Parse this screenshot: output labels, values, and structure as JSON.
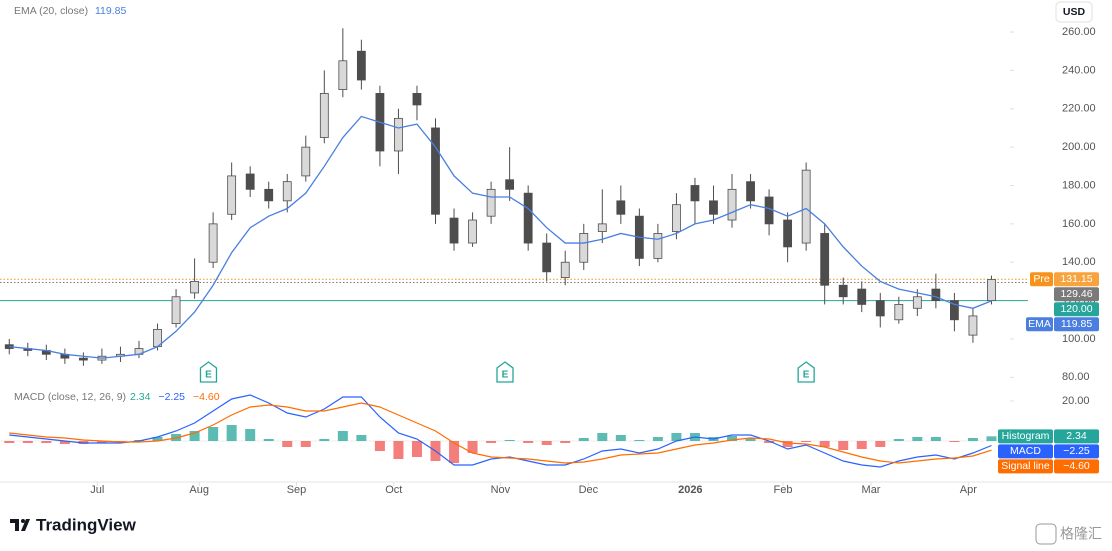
{
  "chart_data": [
    {
      "type": "candlestick",
      "currency": "USD",
      "x": [
        0,
        4,
        8,
        12,
        16,
        20,
        24,
        28,
        32,
        36,
        40,
        44,
        48,
        52,
        56,
        60,
        64,
        68,
        72,
        76,
        80,
        84,
        88,
        92,
        96,
        100,
        104,
        108,
        112,
        116,
        120,
        124,
        128,
        132,
        136,
        140,
        144,
        148,
        152,
        156,
        160,
        164,
        168,
        172,
        176,
        180,
        184,
        188,
        192,
        196,
        200,
        204,
        208,
        212
      ],
      "open": [
        97,
        95,
        94,
        92,
        90,
        89,
        91,
        92,
        96,
        108,
        124,
        140,
        165,
        186,
        178,
        172,
        185,
        205,
        230,
        250,
        228,
        198,
        228,
        210,
        163,
        150,
        164,
        183,
        176,
        150,
        132,
        140,
        156,
        172,
        164,
        142,
        156,
        180,
        172,
        162,
        182,
        174,
        162,
        150,
        155,
        128,
        126,
        120,
        110,
        116,
        126,
        120,
        102,
        120
      ],
      "high": [
        100,
        98,
        97,
        95,
        93,
        95,
        96,
        99,
        108,
        126,
        142,
        166,
        192,
        190,
        182,
        186,
        206,
        240,
        262,
        256,
        232,
        220,
        232,
        215,
        168,
        166,
        182,
        200,
        180,
        155,
        146,
        160,
        178,
        180,
        168,
        160,
        176,
        184,
        180,
        186,
        186,
        178,
        166,
        192,
        160,
        132,
        130,
        124,
        122,
        126,
        134,
        124,
        116,
        133
      ],
      "low": [
        92,
        91,
        89,
        87,
        86,
        87,
        88,
        90,
        94,
        106,
        121,
        137,
        162,
        174,
        168,
        166,
        182,
        202,
        226,
        230,
        190,
        186,
        214,
        160,
        146,
        148,
        160,
        172,
        146,
        130,
        128,
        136,
        150,
        160,
        138,
        140,
        152,
        160,
        160,
        158,
        168,
        154,
        140,
        146,
        118,
        118,
        114,
        106,
        108,
        112,
        116,
        104,
        98,
        118
      ],
      "close": [
        95,
        94,
        92,
        90,
        89,
        91,
        92,
        95,
        105,
        122,
        130,
        160,
        185,
        178,
        172,
        182,
        200,
        228,
        245,
        235,
        198,
        215,
        222,
        165,
        150,
        162,
        178,
        178,
        150,
        135,
        140,
        155,
        160,
        165,
        142,
        155,
        170,
        172,
        165,
        178,
        172,
        160,
        148,
        188,
        128,
        122,
        118,
        112,
        118,
        122,
        120,
        110,
        112,
        131
      ],
      "up_color": "#d9d9d9",
      "down_color": "#4d4d4d",
      "ema": {
        "name": "EMA (20, close)",
        "tag": "EMA",
        "color": "#4a7fe0",
        "values": [
          96,
          95,
          94,
          92,
          91,
          90,
          91,
          92,
          96,
          104,
          114,
          128,
          145,
          158,
          164,
          168,
          176,
          190,
          205,
          216,
          213,
          210,
          212,
          200,
          185,
          176,
          174,
          174,
          168,
          158,
          150,
          150,
          152,
          155,
          153,
          152,
          155,
          160,
          162,
          166,
          170,
          168,
          164,
          168,
          160,
          148,
          138,
          130,
          126,
          124,
          122,
          118,
          116,
          119.85
        ]
      },
      "price_lines": [
        {
          "name": "Pre",
          "value": 131.15,
          "color": "#f7931a",
          "style": "dotted"
        },
        {
          "value": 129.46,
          "color": "#7a7a7a",
          "style": "dotted"
        },
        {
          "value": 120,
          "label": "120.00",
          "color": "#26a69a",
          "style": "solid"
        }
      ],
      "earnings": {
        "label": "E",
        "x": [
          43,
          107,
          172
        ],
        "color": "#26a69a"
      },
      "xlim": [
        -2,
        216
      ],
      "xticks": [
        {
          "value": 19,
          "label": "Jul"
        },
        {
          "value": 41,
          "label": "Aug"
        },
        {
          "value": 62,
          "label": "Sep"
        },
        {
          "value": 83,
          "label": "Oct"
        },
        {
          "value": 106,
          "label": "Nov"
        },
        {
          "value": 125,
          "label": "Dec"
        },
        {
          "value": 147,
          "label": "2026"
        },
        {
          "value": 167,
          "label": "Feb"
        },
        {
          "value": 186,
          "label": "Mar"
        },
        {
          "value": 207,
          "label": "Apr"
        }
      ],
      "ylim": [
        76,
        276.7
      ],
      "yticks": [
        {
          "value": 80,
          "label": "80.00"
        },
        {
          "value": 100,
          "label": "100.00"
        },
        {
          "value": 120,
          "label": "120.00"
        },
        {
          "value": 140,
          "label": "140.00"
        },
        {
          "value": 160,
          "label": "160.00"
        },
        {
          "value": 180,
          "label": "180.00"
        },
        {
          "value": 200,
          "label": "200.00"
        },
        {
          "value": 220,
          "label": "220.00"
        },
        {
          "value": 240,
          "label": "240.00"
        },
        {
          "value": 260,
          "label": "260.00"
        }
      ]
    },
    {
      "type": "macd",
      "title": "MACD (close, 12, 26, 9)",
      "x": [
        0,
        4,
        8,
        12,
        16,
        20,
        24,
        28,
        32,
        36,
        40,
        44,
        48,
        52,
        56,
        60,
        64,
        68,
        72,
        76,
        80,
        84,
        88,
        92,
        96,
        100,
        104,
        108,
        112,
        116,
        120,
        124,
        128,
        132,
        136,
        140,
        144,
        148,
        152,
        156,
        160,
        164,
        168,
        172,
        176,
        180,
        184,
        188,
        192,
        196,
        200,
        204,
        208,
        212
      ],
      "negative_color": "#ef5350",
      "series": [
        {
          "name": "Histogram",
          "color": "#26a69a",
          "values": [
            -1,
            -1,
            -1,
            -1.5,
            -1.5,
            -1,
            -0.5,
            0.5,
            2,
            3.5,
            5,
            7,
            8,
            6,
            1,
            -3,
            -3,
            1,
            5,
            3,
            -5,
            -9,
            -8,
            -10,
            -11,
            -6,
            -1,
            0.5,
            -1,
            -2,
            -1,
            1.5,
            4,
            3,
            0.5,
            2,
            4,
            4,
            2,
            2.5,
            1.5,
            -1,
            -3,
            -0.5,
            -3,
            -4.5,
            -4,
            -3,
            1,
            2,
            2,
            -0.5,
            1.5,
            2.34
          ]
        },
        {
          "name": "MACD",
          "color": "#2962ff",
          "values": [
            3,
            2,
            1,
            0,
            -1,
            -1,
            -1,
            0,
            2,
            5,
            9,
            15,
            21,
            23,
            19,
            14,
            12,
            16,
            22,
            22,
            12,
            4,
            1,
            -5,
            -12,
            -12,
            -9,
            -8,
            -10,
            -12,
            -12,
            -9,
            -5,
            -4,
            -6,
            -4,
            0,
            2,
            1,
            3,
            3,
            0,
            -4,
            -2,
            -6,
            -10,
            -12,
            -13,
            -10,
            -8,
            -7,
            -9,
            -6,
            -2.25
          ],
          "value_labels": [
            null,
            null,
            null,
            null,
            null,
            null,
            null,
            null,
            null,
            null,
            null,
            null,
            null,
            null,
            null,
            null,
            null,
            null,
            null,
            null,
            null,
            null,
            null,
            null,
            null,
            null,
            null,
            null,
            null,
            null,
            null,
            null,
            null,
            null,
            null,
            null,
            null,
            null,
            null,
            null,
            null,
            null,
            null,
            null,
            null,
            null,
            null,
            null,
            null,
            null,
            null,
            null,
            null,
            "−2.25"
          ]
        },
        {
          "name": "Signal line",
          "color": "#ff6d00",
          "values": [
            4,
            3,
            2,
            1.5,
            0.5,
            0,
            -0.5,
            -0.5,
            0,
            1.5,
            4,
            8,
            13,
            17,
            18,
            17,
            15,
            15,
            17,
            19,
            17,
            13,
            9,
            5,
            -1,
            -6,
            -8,
            -8.5,
            -9,
            -10,
            -11,
            -10.5,
            -9,
            -7,
            -6.5,
            -6,
            -4,
            -2,
            -1,
            0.5,
            1.5,
            1,
            -1,
            -1.5,
            -3,
            -5.5,
            -8,
            -10,
            -11,
            -10,
            -9,
            -8.5,
            -7.5,
            -4.6
          ],
          "value_labels": [
            null,
            null,
            null,
            null,
            null,
            null,
            null,
            null,
            null,
            null,
            null,
            null,
            null,
            null,
            null,
            null,
            null,
            null,
            null,
            null,
            null,
            null,
            null,
            null,
            null,
            null,
            null,
            null,
            null,
            null,
            null,
            null,
            null,
            null,
            null,
            null,
            null,
            null,
            null,
            null,
            null,
            null,
            null,
            null,
            null,
            null,
            null,
            null,
            null,
            null,
            null,
            null,
            null,
            "−4.60"
          ]
        }
      ],
      "ylim": [
        -18.5,
        26.5
      ],
      "yticks": [
        {
          "value": 20,
          "label": "20.00"
        }
      ]
    }
  ],
  "branding": {
    "logo": "TradingView",
    "watermark": "格隆汇"
  }
}
